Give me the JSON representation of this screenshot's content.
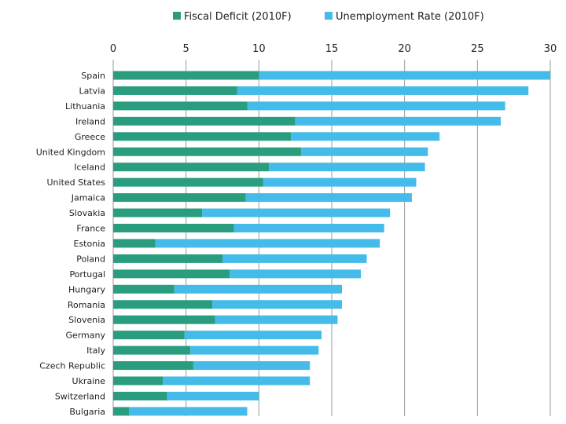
{
  "chart_data": {
    "type": "bar",
    "orientation": "horizontal",
    "stacked": true,
    "categories": [
      "Spain",
      "Latvia",
      "Lithuania",
      "Ireland",
      "Greece",
      "United Kingdom",
      "Iceland",
      "United States",
      "Jamaica",
      "Slovakia",
      "France",
      "Estonia",
      "Poland",
      "Portugal",
      "Hungary",
      "Romania",
      "Slovenia",
      "Germany",
      "Italy",
      "Czech Republic",
      "Ukraine",
      "Switzerland",
      "Bulgaria"
    ],
    "series": [
      {
        "name": "Fiscal Deficit (2010F)",
        "color": "#2a9d7f",
        "values": [
          10.0,
          8.5,
          9.2,
          12.5,
          12.2,
          12.9,
          10.7,
          10.3,
          9.1,
          6.1,
          8.3,
          2.9,
          7.5,
          8.0,
          4.2,
          6.8,
          7.0,
          4.9,
          5.3,
          5.5,
          3.4,
          3.7,
          1.1
        ]
      },
      {
        "name": "Unemployment Rate (2010F)",
        "color": "#44bbe8",
        "values": [
          20.1,
          20.0,
          17.7,
          14.1,
          10.2,
          8.7,
          10.7,
          10.5,
          11.4,
          12.9,
          10.3,
          15.4,
          9.9,
          9.0,
          11.5,
          8.9,
          8.4,
          9.4,
          8.8,
          8.0,
          10.1,
          6.3,
          8.1
        ]
      }
    ],
    "xlim": [
      0,
      30
    ],
    "xticks": [
      0,
      5,
      10,
      15,
      20,
      25,
      30
    ],
    "title": "",
    "xlabel": "",
    "ylabel": "",
    "legend_position": "top",
    "grid": true
  }
}
